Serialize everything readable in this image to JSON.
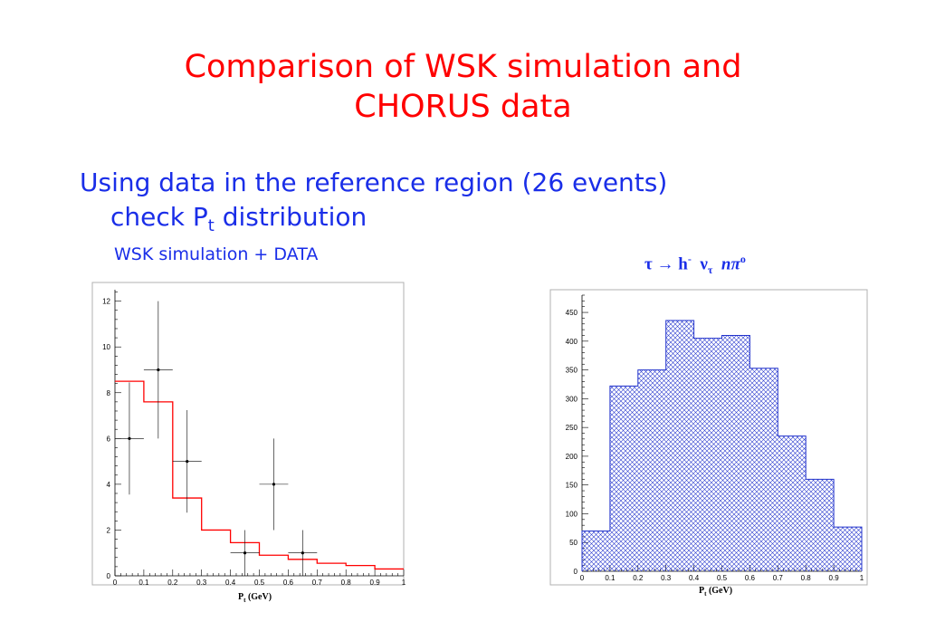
{
  "slide": {
    "title_line1": "Comparison of WSK simulation and",
    "title_line2": "CHORUS data",
    "bullet_line1": "Using data in the reference region (26 events)",
    "bullet_line2_prefix": "check P",
    "bullet_line2_sub": "t",
    "bullet_line2_suffix": " distribution",
    "left_caption": "WSK simulation + DATA",
    "right_caption": {
      "tau": "τ",
      "arrow": "→",
      "h": " h",
      "h_sup": "-",
      "nu": "ν",
      "nu_sub": "τ",
      "n": "n",
      "pi": "π",
      "pi_sup": "o"
    }
  },
  "chart_data": [
    {
      "type": "histogram",
      "xlabel": "P",
      "xlabel_sub": "t",
      "xlabel_unit": " (GeV)",
      "xlim": [
        0,
        1
      ],
      "ylim": [
        0,
        12.5
      ],
      "xticks": [
        "0",
        "0.1",
        "0.2",
        "0.3",
        "0.4",
        "0.5",
        "0.6",
        "0.7",
        "0.8",
        "0.9",
        "1"
      ],
      "yticks": [
        "0",
        "2",
        "4",
        "6",
        "8",
        "10",
        "12"
      ],
      "series": [
        {
          "kind": "step",
          "color": "#ff0000",
          "bin_edges": [
            0,
            0.1,
            0.2,
            0.3,
            0.4,
            0.5,
            0.6,
            0.7,
            0.8,
            0.9,
            1.0
          ],
          "values": [
            8.5,
            7.6,
            3.4,
            2.0,
            1.45,
            0.9,
            0.72,
            0.55,
            0.45,
            0.3
          ]
        },
        {
          "kind": "points_with_errors",
          "color": "#000000",
          "points": [
            {
              "x": 0.05,
              "y": 6,
              "yerr_low": 2.45,
              "yerr_high": 2.45
            },
            {
              "x": 0.15,
              "y": 9,
              "yerr_low": 3.0,
              "yerr_high": 3.0
            },
            {
              "x": 0.25,
              "y": 5,
              "yerr_low": 2.24,
              "yerr_high": 2.24
            },
            {
              "x": 0.45,
              "y": 1,
              "yerr_low": 1.0,
              "yerr_high": 1.0
            },
            {
              "x": 0.55,
              "y": 4,
              "yerr_low": 2.0,
              "yerr_high": 2.0
            },
            {
              "x": 0.65,
              "y": 1,
              "yerr_low": 1.0,
              "yerr_high": 1.0
            }
          ],
          "xerr": 0.05
        }
      ]
    },
    {
      "type": "histogram",
      "xlabel": "P",
      "xlabel_sub": "t",
      "xlabel_unit": " (GeV)",
      "xlim": [
        0,
        1
      ],
      "ylim": [
        0,
        480
      ],
      "xticks": [
        "0",
        "0.1",
        "0.2",
        "0.3",
        "0.4",
        "0.5",
        "0.6",
        "0.7",
        "0.8",
        "0.9",
        "1"
      ],
      "yticks": [
        "0",
        "50",
        "100",
        "150",
        "200",
        "250",
        "300",
        "350",
        "400",
        "450"
      ],
      "series": [
        {
          "kind": "hatched_bars",
          "color": "#2233cc",
          "bin_edges": [
            0,
            0.1,
            0.2,
            0.3,
            0.4,
            0.5,
            0.6,
            0.7,
            0.8,
            0.9,
            1.0
          ],
          "values": [
            70,
            322,
            350,
            436,
            405,
            410,
            353,
            235,
            160,
            77
          ]
        }
      ]
    }
  ]
}
